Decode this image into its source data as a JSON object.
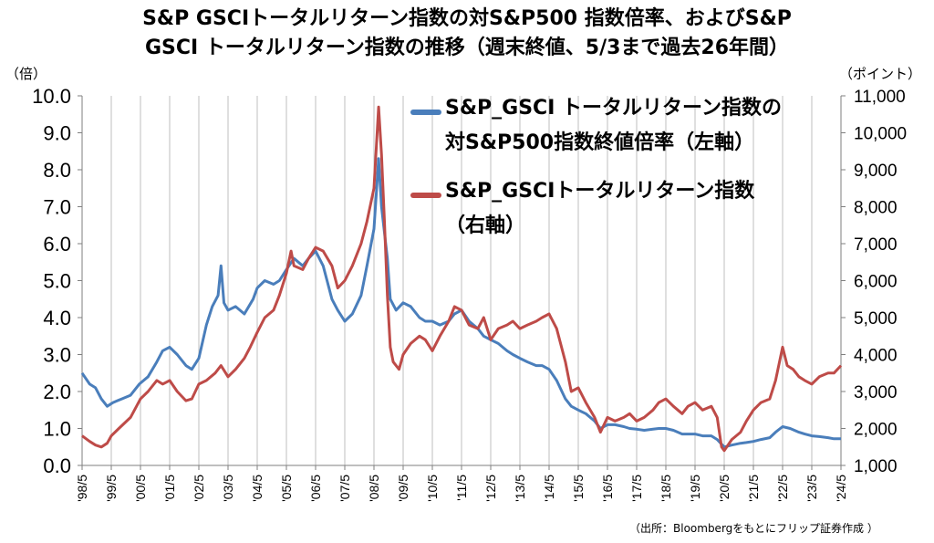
{
  "title_line1": "S&P GSCIトータルリターン指数の対S&P500 指数倍率、およびS&P",
  "title_line2": "GSCI トータルリターン指数の推移（週末終値、5/3まで過去26年間）",
  "left_axis_unit": "（倍）",
  "right_axis_unit": "（ポイント）",
  "source": "（出所：Bloombergをもとにフリップ証券作成 ）",
  "colors": {
    "ratio_series": "#4a7ebb",
    "index_series": "#be4b48"
  },
  "chart_data": {
    "type": "line",
    "x_ticks": [
      "'98/5",
      "'99/5",
      "'00/5",
      "'01/5",
      "'02/5",
      "'03/5",
      "'04/5",
      "'05/5",
      "'06/5",
      "'07/5",
      "'08/5",
      "'09/5",
      "'10/5",
      "'11/5",
      "'12/5",
      "'13/5",
      "'14/5",
      "'15/5",
      "'16/5",
      "'17/5",
      "'18/5",
      "'19/5",
      "'20/5",
      "'21/5",
      "'22/5",
      "'23/5",
      "'24/5"
    ],
    "y_left_ticks": [
      "0.0",
      "1.0",
      "2.0",
      "3.0",
      "4.0",
      "5.0",
      "6.0",
      "7.0",
      "8.0",
      "9.0",
      "10.0"
    ],
    "y_right_ticks": [
      "1,000",
      "2,000",
      "3,000",
      "4,000",
      "5,000",
      "6,000",
      "7,000",
      "8,000",
      "9,000",
      "10,000",
      "11,000"
    ],
    "y_left_range": [
      0,
      10
    ],
    "y_right_range": [
      1000,
      11000
    ],
    "grid": "vertical only",
    "legend_position": "top-right",
    "series": [
      {
        "name": "S&P_GSCI トータルリターン指数の対S&P500指数終値倍率（左軸）",
        "legend_lines": [
          "S&P_GSCI トータルリターン指数の",
          "対S&P500指数終値倍率（左軸）"
        ],
        "axis": "left",
        "points": [
          [
            1998.34,
            2.5
          ],
          [
            1998.6,
            2.2
          ],
          [
            1998.8,
            2.1
          ],
          [
            1999.0,
            1.8
          ],
          [
            1999.2,
            1.6
          ],
          [
            1999.4,
            1.7
          ],
          [
            1999.7,
            1.8
          ],
          [
            2000.0,
            1.9
          ],
          [
            2000.3,
            2.2
          ],
          [
            2000.6,
            2.4
          ],
          [
            2000.9,
            2.8
          ],
          [
            2001.1,
            3.1
          ],
          [
            2001.34,
            3.2
          ],
          [
            2001.6,
            3.0
          ],
          [
            2001.9,
            2.7
          ],
          [
            2002.1,
            2.6
          ],
          [
            2002.34,
            2.9
          ],
          [
            2002.6,
            3.8
          ],
          [
            2002.8,
            4.3
          ],
          [
            2003.0,
            4.6
          ],
          [
            2003.1,
            5.4
          ],
          [
            2003.2,
            4.4
          ],
          [
            2003.34,
            4.2
          ],
          [
            2003.6,
            4.3
          ],
          [
            2003.9,
            4.1
          ],
          [
            2004.2,
            4.5
          ],
          [
            2004.34,
            4.8
          ],
          [
            2004.6,
            5.0
          ],
          [
            2004.9,
            4.9
          ],
          [
            2005.1,
            5.0
          ],
          [
            2005.34,
            5.3
          ],
          [
            2005.6,
            5.6
          ],
          [
            2005.9,
            5.4
          ],
          [
            2006.1,
            5.6
          ],
          [
            2006.34,
            5.8
          ],
          [
            2006.6,
            5.4
          ],
          [
            2006.9,
            4.5
          ],
          [
            2007.1,
            4.2
          ],
          [
            2007.34,
            3.9
          ],
          [
            2007.6,
            4.1
          ],
          [
            2007.9,
            4.6
          ],
          [
            2008.1,
            5.4
          ],
          [
            2008.34,
            6.4
          ],
          [
            2008.5,
            8.3
          ],
          [
            2008.6,
            7.0
          ],
          [
            2008.8,
            5.6
          ],
          [
            2008.9,
            4.5
          ],
          [
            2009.1,
            4.2
          ],
          [
            2009.34,
            4.4
          ],
          [
            2009.6,
            4.3
          ],
          [
            2009.9,
            4.0
          ],
          [
            2010.1,
            3.9
          ],
          [
            2010.34,
            3.9
          ],
          [
            2010.6,
            3.8
          ],
          [
            2010.9,
            3.9
          ],
          [
            2011.1,
            4.1
          ],
          [
            2011.34,
            4.2
          ],
          [
            2011.6,
            3.9
          ],
          [
            2011.9,
            3.7
          ],
          [
            2012.1,
            3.5
          ],
          [
            2012.34,
            3.4
          ],
          [
            2012.6,
            3.3
          ],
          [
            2012.9,
            3.1
          ],
          [
            2013.1,
            3.0
          ],
          [
            2013.34,
            2.9
          ],
          [
            2013.6,
            2.8
          ],
          [
            2013.9,
            2.7
          ],
          [
            2014.1,
            2.7
          ],
          [
            2014.34,
            2.6
          ],
          [
            2014.6,
            2.3
          ],
          [
            2014.9,
            1.8
          ],
          [
            2015.1,
            1.6
          ],
          [
            2015.34,
            1.5
          ],
          [
            2015.6,
            1.4
          ],
          [
            2015.9,
            1.2
          ],
          [
            2016.1,
            1.0
          ],
          [
            2016.34,
            1.1
          ],
          [
            2016.6,
            1.1
          ],
          [
            2016.9,
            1.05
          ],
          [
            2017.1,
            1.0
          ],
          [
            2017.34,
            0.98
          ],
          [
            2017.6,
            0.95
          ],
          [
            2017.9,
            0.98
          ],
          [
            2018.1,
            1.0
          ],
          [
            2018.34,
            1.0
          ],
          [
            2018.6,
            0.95
          ],
          [
            2018.9,
            0.85
          ],
          [
            2019.1,
            0.85
          ],
          [
            2019.34,
            0.85
          ],
          [
            2019.6,
            0.8
          ],
          [
            2019.9,
            0.8
          ],
          [
            2020.1,
            0.7
          ],
          [
            2020.34,
            0.5
          ],
          [
            2020.6,
            0.55
          ],
          [
            2020.9,
            0.6
          ],
          [
            2021.1,
            0.62
          ],
          [
            2021.34,
            0.65
          ],
          [
            2021.6,
            0.7
          ],
          [
            2021.9,
            0.75
          ],
          [
            2022.1,
            0.9
          ],
          [
            2022.34,
            1.05
          ],
          [
            2022.6,
            1.0
          ],
          [
            2022.9,
            0.9
          ],
          [
            2023.1,
            0.85
          ],
          [
            2023.34,
            0.8
          ],
          [
            2023.6,
            0.78
          ],
          [
            2023.9,
            0.75
          ],
          [
            2024.1,
            0.72
          ],
          [
            2024.34,
            0.72
          ]
        ]
      },
      {
        "name": "S&P_GSCIトータルリターン指数（右軸）",
        "legend_lines": [
          "S&P_GSCIトータルリターン指数",
          "（右軸）"
        ],
        "axis": "right",
        "points": [
          [
            1998.34,
            1800
          ],
          [
            1998.6,
            1650
          ],
          [
            1998.8,
            1550
          ],
          [
            1999.0,
            1500
          ],
          [
            1999.2,
            1600
          ],
          [
            1999.34,
            1800
          ],
          [
            1999.6,
            2000
          ],
          [
            2000.0,
            2300
          ],
          [
            2000.34,
            2800
          ],
          [
            2000.6,
            3000
          ],
          [
            2000.9,
            3300
          ],
          [
            2001.1,
            3200
          ],
          [
            2001.34,
            3300
          ],
          [
            2001.6,
            3000
          ],
          [
            2001.9,
            2750
          ],
          [
            2002.1,
            2800
          ],
          [
            2002.34,
            3200
          ],
          [
            2002.6,
            3300
          ],
          [
            2002.9,
            3500
          ],
          [
            2003.1,
            3700
          ],
          [
            2003.34,
            3400
          ],
          [
            2003.6,
            3600
          ],
          [
            2003.9,
            3900
          ],
          [
            2004.1,
            4200
          ],
          [
            2004.34,
            4600
          ],
          [
            2004.6,
            5000
          ],
          [
            2004.9,
            5200
          ],
          [
            2005.1,
            5600
          ],
          [
            2005.34,
            6200
          ],
          [
            2005.5,
            6800
          ],
          [
            2005.6,
            6400
          ],
          [
            2005.9,
            6300
          ],
          [
            2006.1,
            6600
          ],
          [
            2006.34,
            6900
          ],
          [
            2006.6,
            6800
          ],
          [
            2006.9,
            6400
          ],
          [
            2007.1,
            5800
          ],
          [
            2007.34,
            6000
          ],
          [
            2007.6,
            6400
          ],
          [
            2007.9,
            7000
          ],
          [
            2008.1,
            7600
          ],
          [
            2008.34,
            8500
          ],
          [
            2008.5,
            10700
          ],
          [
            2008.6,
            9400
          ],
          [
            2008.7,
            7600
          ],
          [
            2008.8,
            5600
          ],
          [
            2008.9,
            4200
          ],
          [
            2009.0,
            3800
          ],
          [
            2009.2,
            3600
          ],
          [
            2009.34,
            4000
          ],
          [
            2009.6,
            4300
          ],
          [
            2009.9,
            4500
          ],
          [
            2010.1,
            4400
          ],
          [
            2010.34,
            4100
          ],
          [
            2010.6,
            4500
          ],
          [
            2010.9,
            4900
          ],
          [
            2011.1,
            5300
          ],
          [
            2011.34,
            5200
          ],
          [
            2011.6,
            4800
          ],
          [
            2011.9,
            4700
          ],
          [
            2012.1,
            5000
          ],
          [
            2012.34,
            4400
          ],
          [
            2012.6,
            4700
          ],
          [
            2012.9,
            4800
          ],
          [
            2013.1,
            4900
          ],
          [
            2013.34,
            4700
          ],
          [
            2013.6,
            4800
          ],
          [
            2013.9,
            4900
          ],
          [
            2014.1,
            5000
          ],
          [
            2014.34,
            5100
          ],
          [
            2014.6,
            4700
          ],
          [
            2014.9,
            3800
          ],
          [
            2015.1,
            3000
          ],
          [
            2015.34,
            3100
          ],
          [
            2015.6,
            2700
          ],
          [
            2015.9,
            2300
          ],
          [
            2016.1,
            1900
          ],
          [
            2016.34,
            2300
          ],
          [
            2016.6,
            2200
          ],
          [
            2016.9,
            2300
          ],
          [
            2017.1,
            2400
          ],
          [
            2017.34,
            2200
          ],
          [
            2017.6,
            2300
          ],
          [
            2017.9,
            2500
          ],
          [
            2018.1,
            2700
          ],
          [
            2018.34,
            2800
          ],
          [
            2018.6,
            2600
          ],
          [
            2018.9,
            2400
          ],
          [
            2019.1,
            2600
          ],
          [
            2019.34,
            2700
          ],
          [
            2019.6,
            2500
          ],
          [
            2019.9,
            2600
          ],
          [
            2020.1,
            2300
          ],
          [
            2020.25,
            1500
          ],
          [
            2020.34,
            1400
          ],
          [
            2020.6,
            1700
          ],
          [
            2020.9,
            1900
          ],
          [
            2021.1,
            2200
          ],
          [
            2021.34,
            2500
          ],
          [
            2021.6,
            2700
          ],
          [
            2021.9,
            2800
          ],
          [
            2022.1,
            3300
          ],
          [
            2022.34,
            4200
          ],
          [
            2022.5,
            3700
          ],
          [
            2022.7,
            3600
          ],
          [
            2022.9,
            3400
          ],
          [
            2023.1,
            3300
          ],
          [
            2023.34,
            3200
          ],
          [
            2023.6,
            3400
          ],
          [
            2023.9,
            3500
          ],
          [
            2024.1,
            3500
          ],
          [
            2024.34,
            3700
          ]
        ]
      }
    ]
  }
}
